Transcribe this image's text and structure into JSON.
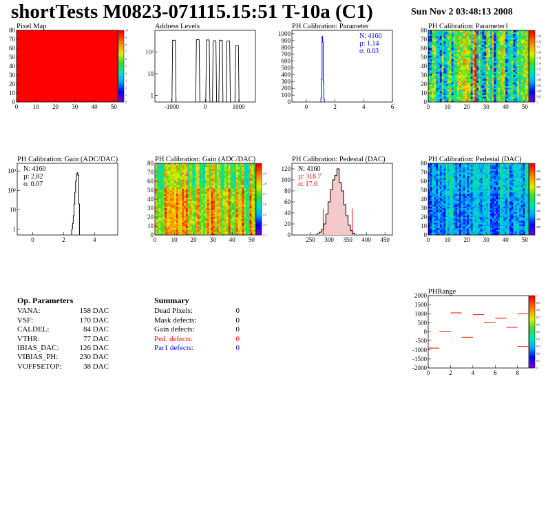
{
  "header": {
    "title": "shortTests M0823-071115.15:51 T-10a (C1)",
    "date": "Sun Nov  2 03:48:13 2008"
  },
  "colors": {
    "red": "#ff0000",
    "blue": "#0000ff",
    "black": "#000000"
  },
  "chart_data": [
    {
      "id": "pixel-map",
      "type": "heatmap",
      "title": "Pixel Map",
      "xlim": [
        0,
        52
      ],
      "ylim": [
        0,
        80
      ],
      "xticks": [
        "0",
        "10",
        "20",
        "30",
        "40",
        "50"
      ],
      "yticks": [
        "0",
        "10",
        "20",
        "30",
        "40",
        "50",
        "60",
        "70",
        "80"
      ],
      "zlim": [
        0,
        10
      ],
      "zticks": [
        "0",
        "1",
        "2",
        "3",
        "4",
        "5",
        "6",
        "7",
        "8",
        "9",
        "10"
      ],
      "uniform_value": 10
    },
    {
      "id": "address-levels",
      "type": "bar",
      "title": "Address Levels",
      "log_y": true,
      "xlim": [
        -1500,
        1500
      ],
      "xticks": [
        "-1000",
        "0",
        "1000"
      ],
      "yticks": [
        "1",
        "10",
        "10²"
      ],
      "peaks": [
        {
          "x": -930,
          "y": 350
        },
        {
          "x": -220,
          "y": 370
        },
        {
          "x": 80,
          "y": 360
        },
        {
          "x": 280,
          "y": 330
        },
        {
          "x": 470,
          "y": 350
        },
        {
          "x": 690,
          "y": 320
        },
        {
          "x": 950,
          "y": 200
        }
      ]
    },
    {
      "id": "ph-parameter",
      "type": "bar",
      "title": "PH Calibration: Parameter",
      "xlim": [
        -1,
        6
      ],
      "ylim": [
        0,
        1050
      ],
      "xticks": [
        "0",
        "2",
        "4",
        "6"
      ],
      "yticks": [
        "0",
        "100",
        "200",
        "300",
        "400",
        "500",
        "600",
        "700",
        "800",
        "900",
        "1000"
      ],
      "stats": {
        "n": "N: 4160",
        "mu": "µ: 1.14",
        "sigma": "σ: 0.03"
      },
      "bins": [
        {
          "x": 1.04,
          "y": 60
        },
        {
          "x": 1.08,
          "y": 330
        },
        {
          "x": 1.12,
          "y": 960
        },
        {
          "x": 1.16,
          "y": 880
        },
        {
          "x": 1.2,
          "y": 300
        },
        {
          "x": 1.24,
          "y": 40
        }
      ]
    },
    {
      "id": "ph-parameter1",
      "type": "heatmap",
      "title": "PH Calibration: Parameter1",
      "xlim": [
        0,
        52
      ],
      "ylim": [
        0,
        80
      ],
      "xticks": [
        "0",
        "10",
        "20",
        "30",
        "40",
        "50"
      ],
      "yticks": [
        "0",
        "10",
        "20",
        "30",
        "40",
        "50",
        "60",
        "70",
        "80"
      ],
      "zlim": [
        1,
        1.26
      ],
      "zticks": [
        "1",
        "1.02",
        "1.04",
        "1.06",
        "1.08",
        "1.1",
        "1.12",
        "1.14",
        "1.16",
        "1.18",
        "1.2",
        "1.22",
        "1.24"
      ]
    },
    {
      "id": "ph-gain-hist",
      "type": "bar",
      "title": "PH Calibration: Gain (ADC/DAC)",
      "log_y": true,
      "xlim": [
        -1,
        5.5
      ],
      "xticks": [
        "0",
        "2",
        "4"
      ],
      "yticks": [
        "1",
        "10",
        "10²",
        "10³"
      ],
      "stats": {
        "n": "N: 4160",
        "mu": "µ: 2.82",
        "sigma": "σ: 0.07"
      },
      "bins": [
        {
          "x": 2.55,
          "y": 1
        },
        {
          "x": 2.6,
          "y": 2
        },
        {
          "x": 2.65,
          "y": 5
        },
        {
          "x": 2.7,
          "y": 20
        },
        {
          "x": 2.75,
          "y": 80
        },
        {
          "x": 2.8,
          "y": 300
        },
        {
          "x": 2.85,
          "y": 700
        },
        {
          "x": 2.9,
          "y": 800
        },
        {
          "x": 2.95,
          "y": 600
        },
        {
          "x": 3.0,
          "y": 20
        }
      ]
    },
    {
      "id": "ph-gain-map",
      "type": "heatmap",
      "title": "PH Calibration: Gain (ADC/DAC)",
      "xlim": [
        0,
        52
      ],
      "ylim": [
        0,
        80
      ],
      "xticks": [
        "0",
        "10",
        "20",
        "30",
        "40",
        "50"
      ],
      "yticks": [
        "0",
        "10",
        "20",
        "30",
        "40",
        "50",
        "60",
        "70",
        "80"
      ],
      "zlim": [
        2.3,
        3.0
      ],
      "zticks": [
        "2.3",
        "2.4",
        "2.5",
        "2.6",
        "2.7",
        "2.8",
        "2.9"
      ]
    },
    {
      "id": "ph-pedestal-hist",
      "type": "bar",
      "title": "PH Calibration: Pedestal (DAC)",
      "xlim": [
        200,
        470
      ],
      "ylim": [
        0,
        130
      ],
      "xticks": [
        "250",
        "300",
        "350",
        "400",
        "450"
      ],
      "yticks": [
        "0",
        "20",
        "40",
        "60",
        "80",
        "100",
        "120"
      ],
      "stats": {
        "n": "N: 4160",
        "mu": "µ: 318.7",
        "sigma": "σ: 17.0"
      },
      "cut_lines": [
        284,
        362
      ],
      "bins": [
        {
          "x": 270,
          "y": 2
        },
        {
          "x": 276,
          "y": 5
        },
        {
          "x": 282,
          "y": 10
        },
        {
          "x": 288,
          "y": 20
        },
        {
          "x": 294,
          "y": 38
        },
        {
          "x": 300,
          "y": 60
        },
        {
          "x": 306,
          "y": 82
        },
        {
          "x": 312,
          "y": 100
        },
        {
          "x": 318,
          "y": 108
        },
        {
          "x": 324,
          "y": 120
        },
        {
          "x": 330,
          "y": 95
        },
        {
          "x": 336,
          "y": 80
        },
        {
          "x": 342,
          "y": 55
        },
        {
          "x": 348,
          "y": 35
        },
        {
          "x": 354,
          "y": 18
        },
        {
          "x": 360,
          "y": 8
        },
        {
          "x": 366,
          "y": 3
        }
      ]
    },
    {
      "id": "ph-pedestal-map",
      "type": "heatmap",
      "title": "PH Calibration: Pedestal (DAC)",
      "xlim": [
        0,
        52
      ],
      "ylim": [
        0,
        80
      ],
      "xticks": [
        "0",
        "10",
        "20",
        "30",
        "40",
        "50"
      ],
      "yticks": [
        "0",
        "10",
        "20",
        "30",
        "40",
        "50",
        "60",
        "70",
        "80"
      ],
      "zlim": [
        260,
        440
      ],
      "zticks": [
        "280",
        "300",
        "320",
        "340",
        "360",
        "380",
        "400",
        "420"
      ]
    },
    {
      "id": "phrange",
      "type": "scatter",
      "title": "PHRange",
      "xlim": [
        0,
        9
      ],
      "ylim": [
        -2000,
        2000
      ],
      "xticks": [
        "0",
        "2",
        "4",
        "6",
        "8"
      ],
      "yticks": [
        "-2000",
        "-1500",
        "-1000",
        "-500",
        "0",
        "500",
        "1000",
        "1500",
        "2000"
      ],
      "zlim": [
        0,
        1
      ],
      "zticks": [
        "0",
        "0.1",
        "0.2",
        "0.3",
        "0.4",
        "0.5",
        "0.6",
        "0.7",
        "0.8",
        "0.9",
        "1"
      ],
      "segments": [
        {
          "x": 0,
          "y": -900
        },
        {
          "x": 1,
          "y": 0
        },
        {
          "x": 2,
          "y": 1050
        },
        {
          "x": 3,
          "y": -300
        },
        {
          "x": 4,
          "y": 950
        },
        {
          "x": 5,
          "y": 500
        },
        {
          "x": 6,
          "y": 750
        },
        {
          "x": 7,
          "y": 250
        },
        {
          "x": 8,
          "y": 1000
        },
        {
          "x": 8,
          "y": -800
        }
      ]
    }
  ],
  "op_params": {
    "heading": "Op. Parameters",
    "rows": [
      {
        "name": "VANA:",
        "value": "158 DAC"
      },
      {
        "name": "VSF:",
        "value": "170 DAC"
      },
      {
        "name": "CALDEL:",
        "value": "84 DAC"
      },
      {
        "name": "VTHR:",
        "value": "77 DAC"
      },
      {
        "name": "IBIAS_DAC:",
        "value": "126 DAC"
      },
      {
        "name": "VIBIAS_PH:",
        "value": "230 DAC"
      },
      {
        "name": "VOFFSETOP:",
        "value": "38 DAC"
      }
    ]
  },
  "summary": {
    "heading": "Summary",
    "rows": [
      {
        "name": "Dead Pixels:",
        "value": "0",
        "color": "#000000"
      },
      {
        "name": "Mask defects:",
        "value": "0",
        "color": "#000000"
      },
      {
        "name": "Gain defects:",
        "value": "0",
        "color": "#000000"
      },
      {
        "name": "Ped. defects:",
        "value": "0",
        "color": "#ff0000"
      },
      {
        "name": "Par1 defects:",
        "value": "0",
        "color": "#0000ff"
      }
    ]
  }
}
